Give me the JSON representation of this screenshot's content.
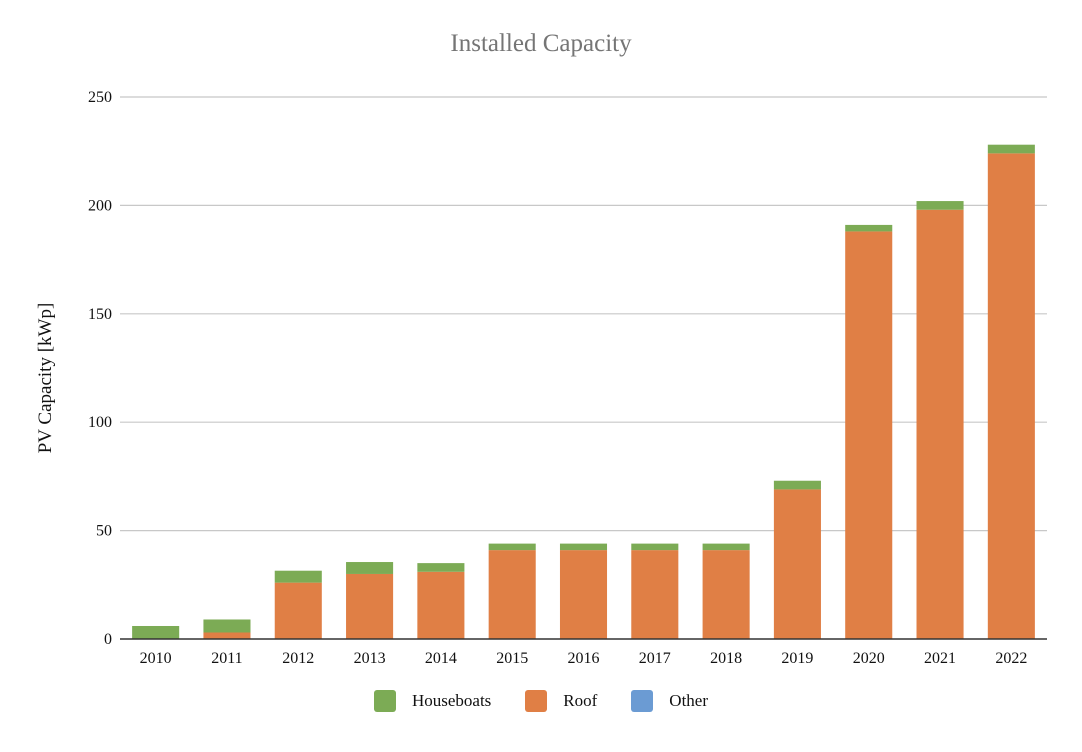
{
  "chart_data": {
    "type": "bar",
    "stacked": true,
    "title": "Installed Capacity",
    "ylabel": "PV Capacity [kWp]",
    "xlabel": "",
    "categories": [
      "2010",
      "2011",
      "2012",
      "2013",
      "2014",
      "2015",
      "2016",
      "2017",
      "2018",
      "2019",
      "2020",
      "2021",
      "2022"
    ],
    "ylim": [
      0,
      250
    ],
    "yticks": [
      0,
      50,
      100,
      150,
      200,
      250
    ],
    "grid": true,
    "legend_position": "bottom",
    "series": [
      {
        "name": "Roof",
        "color": "#e07f45",
        "values": [
          0,
          3,
          26,
          30,
          31,
          41,
          41,
          41,
          41,
          69,
          188,
          198,
          224
        ]
      },
      {
        "name": "Houseboats",
        "color": "#7cab55",
        "values": [
          6,
          6,
          5.5,
          5.5,
          4,
          3,
          3,
          3,
          3,
          4,
          3,
          4,
          4
        ]
      },
      {
        "name": "Other",
        "color": "#6b9bd3",
        "values": [
          0,
          0,
          0,
          0,
          0,
          0,
          0,
          0,
          0,
          0,
          0,
          0,
          0
        ]
      }
    ],
    "legend": [
      {
        "name": "Houseboats",
        "color": "#7cab55"
      },
      {
        "name": "Roof",
        "color": "#e07f45"
      },
      {
        "name": "Other",
        "color": "#6b9bd3"
      }
    ]
  }
}
